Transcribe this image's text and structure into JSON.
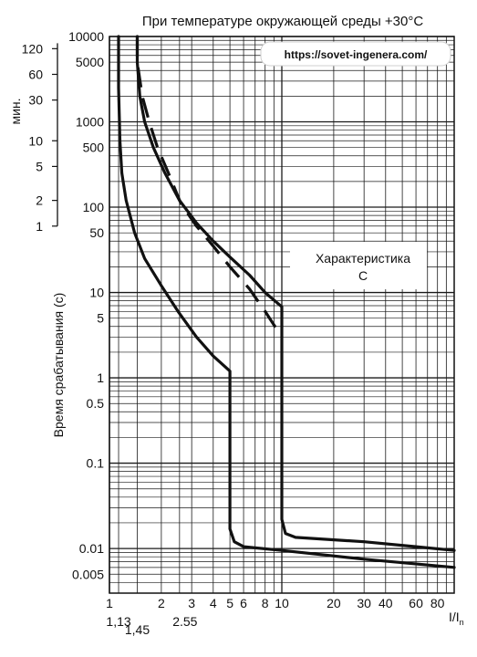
{
  "chart_data": {
    "type": "line",
    "title": "При температуре окружающей среды +30°C",
    "watermark": "https://sovet-ingenera.com/",
    "ylabel": "Время срабатывания (с)",
    "minutes_label": "мин.",
    "xlabel_main": "I/I",
    "xlabel_sub": "n",
    "annotation_line1": "Характеристика",
    "annotation_line2": "C",
    "x_scale": "log",
    "y_scale": "log",
    "xlim": [
      1,
      100
    ],
    "ylim": [
      0.003,
      10000
    ],
    "x_ticks": [
      {
        "value": 1,
        "label": "1"
      },
      {
        "value": 2,
        "label": "2"
      },
      {
        "value": 3,
        "label": "3"
      },
      {
        "value": 4,
        "label": "4"
      },
      {
        "value": 5,
        "label": "5"
      },
      {
        "value": 6,
        "label": "6"
      },
      {
        "value": 8,
        "label": "8"
      },
      {
        "value": 10,
        "label": "10"
      },
      {
        "value": 20,
        "label": "20"
      },
      {
        "value": 30,
        "label": "30"
      },
      {
        "value": 40,
        "label": "40"
      },
      {
        "value": 60,
        "label": "60"
      },
      {
        "value": 80,
        "label": "80"
      }
    ],
    "x_ticks_secondary": [
      {
        "value": 1.13,
        "label": "1,13"
      },
      {
        "value": 1.45,
        "label": "1,45"
      },
      {
        "value": 2.55,
        "label": "2.55"
      }
    ],
    "y_ticks": [
      {
        "value": 10000,
        "label": "10000"
      },
      {
        "value": 5000,
        "label": "5000"
      },
      {
        "value": 1000,
        "label": "1000"
      },
      {
        "value": 500,
        "label": "500"
      },
      {
        "value": 100,
        "label": "100"
      },
      {
        "value": 50,
        "label": "50"
      },
      {
        "value": 10,
        "label": "10"
      },
      {
        "value": 5,
        "label": "5"
      },
      {
        "value": 1,
        "label": "1"
      },
      {
        "value": 0.5,
        "label": "0.5"
      },
      {
        "value": 0.1,
        "label": "0.1"
      },
      {
        "value": 0.01,
        "label": "0.01"
      },
      {
        "value": 0.005,
        "label": "0.005"
      }
    ],
    "minute_ticks": [
      {
        "value": 120,
        "label": "120"
      },
      {
        "value": 60,
        "label": "60"
      },
      {
        "value": 30,
        "label": "30"
      },
      {
        "value": 10,
        "label": "10"
      },
      {
        "value": 5,
        "label": "5"
      },
      {
        "value": 2,
        "label": "2"
      },
      {
        "value": 1,
        "label": "1"
      }
    ],
    "series": [
      {
        "style": "solid",
        "points": [
          [
            1.13,
            10000
          ],
          [
            1.13,
            2500
          ],
          [
            1.15,
            600
          ],
          [
            1.18,
            250
          ],
          [
            1.25,
            120
          ],
          [
            1.4,
            50
          ],
          [
            1.6,
            25
          ],
          [
            2.0,
            12
          ],
          [
            2.5,
            6
          ],
          [
            3.2,
            3
          ],
          [
            4.0,
            1.8
          ],
          [
            5.0,
            1.2
          ],
          [
            5.0,
            0.017
          ],
          [
            5.3,
            0.012
          ],
          [
            6.0,
            0.0105
          ],
          [
            10,
            0.0095
          ],
          [
            30,
            0.0075
          ],
          [
            100,
            0.006
          ]
        ]
      },
      {
        "style": "solid",
        "points": [
          [
            1.45,
            10000
          ],
          [
            1.45,
            5000
          ],
          [
            1.5,
            2000
          ],
          [
            1.6,
            1000
          ],
          [
            1.8,
            500
          ],
          [
            2.1,
            250
          ],
          [
            2.55,
            120
          ],
          [
            3.2,
            65
          ],
          [
            4.0,
            40
          ],
          [
            5.0,
            26
          ],
          [
            6.5,
            16
          ],
          [
            8.0,
            10
          ],
          [
            10,
            6.8
          ],
          [
            10,
            0.022
          ],
          [
            10.5,
            0.015
          ],
          [
            12,
            0.0135
          ],
          [
            30,
            0.012
          ],
          [
            60,
            0.0105
          ],
          [
            100,
            0.0095
          ]
        ]
      },
      {
        "style": "dashed",
        "points": [
          [
            1.45,
            10000
          ],
          [
            1.45,
            5000
          ],
          [
            1.55,
            2000
          ],
          [
            1.7,
            1000
          ],
          [
            1.9,
            500
          ],
          [
            2.2,
            250
          ],
          [
            2.6,
            110
          ],
          [
            3.2,
            60
          ],
          [
            4.0,
            35
          ],
          [
            5.0,
            20
          ],
          [
            6.5,
            11
          ],
          [
            8.0,
            6
          ],
          [
            10,
            3
          ]
        ]
      }
    ]
  }
}
